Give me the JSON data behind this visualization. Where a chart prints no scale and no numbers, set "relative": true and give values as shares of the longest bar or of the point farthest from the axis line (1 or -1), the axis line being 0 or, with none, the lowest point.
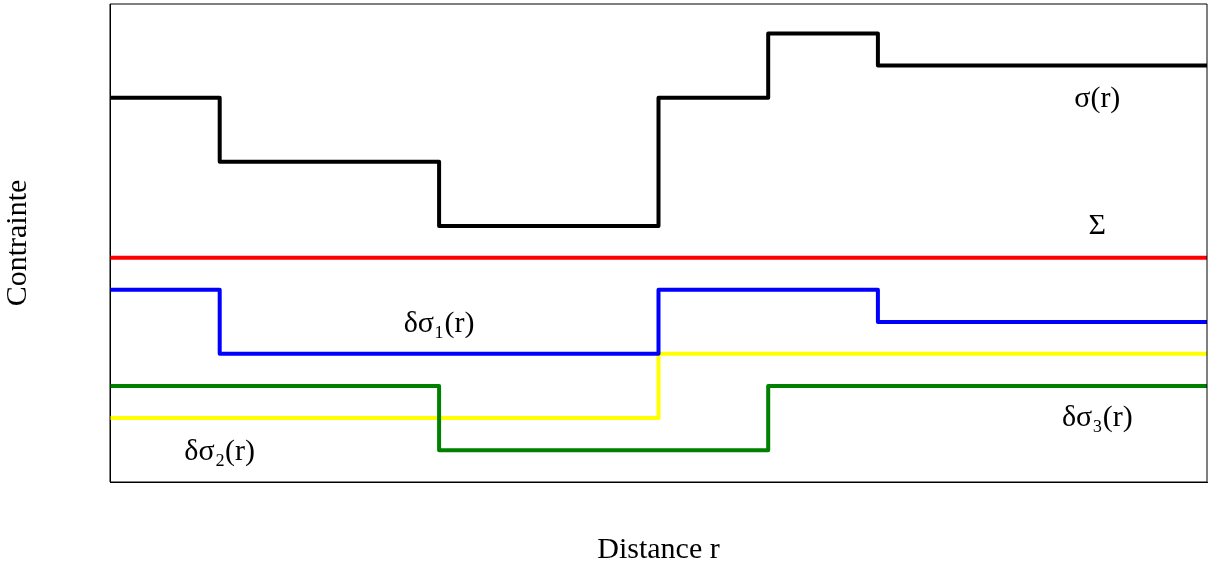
{
  "chart_data": {
    "type": "step",
    "relative": true,
    "xlabel": "Distance r",
    "ylabel": "Contrainte",
    "grid": false,
    "legend": false,
    "categories": [
      null,
      null,
      null,
      null,
      null,
      null,
      null,
      null,
      null,
      null,
      null
    ],
    "series": [
      {
        "name": "σ(r)",
        "color": "#000000",
        "values": [
          0.857,
          0.857,
          0.714,
          0.714,
          0.571,
          0.571,
          0.857,
          1,
          0.929,
          0.929,
          0.929
        ]
      },
      {
        "name": "Σ",
        "color": "#ff0000",
        "values": [
          0.5,
          0.5,
          0.5,
          0.5,
          0.5,
          0.5,
          0.5,
          0.5,
          0.5,
          0.5,
          0.5
        ]
      },
      {
        "name": "δσ₁(r)",
        "color": "#0000ff",
        "values": [
          0.429,
          0.429,
          0.286,
          0.286,
          0.286,
          0.286,
          0.429,
          0.429,
          0.357,
          0.357,
          0.357
        ]
      },
      {
        "name": "δσ₃(r)",
        "color": "#008000",
        "values": [
          0.214,
          0.214,
          0.214,
          0.214,
          0.071,
          0.071,
          0.071,
          0.214,
          0.214,
          0.214,
          0.214
        ]
      },
      {
        "name": "δσ₂(r)",
        "color": "#ffff00",
        "values": [
          0.143,
          0.143,
          0.143,
          0.143,
          0.143,
          0.143,
          0.286,
          0.286,
          0.286,
          0.286,
          0.286
        ]
      }
    ]
  }
}
